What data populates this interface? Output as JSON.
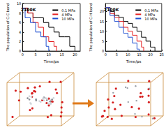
{
  "chart_data": [
    {
      "type": "line",
      "title": "2100K",
      "x_label": "Time/ps",
      "y_label": "The population of C-C bond",
      "xlim": [
        0,
        22
      ],
      "xticks": [
        0,
        5,
        10,
        15,
        20
      ],
      "ylim": [
        0,
        10
      ],
      "yticks": [
        0,
        2,
        4,
        6,
        8,
        10
      ],
      "line_style": "step",
      "legend": "upper right",
      "series": [
        {
          "name": "0.1 MPa",
          "color": "#000000",
          "x": [
            0,
            2,
            4,
            6,
            8,
            10,
            12,
            14,
            16,
            18,
            20
          ],
          "values": [
            9,
            8,
            7,
            7,
            6,
            5,
            4,
            3,
            3,
            1,
            0
          ]
        },
        {
          "name": "4 MPa",
          "color": "#e41a1c",
          "x": [
            0,
            2,
            4,
            6,
            8,
            10,
            12,
            13
          ],
          "values": [
            9,
            8,
            6,
            5,
            3,
            2,
            1,
            0
          ]
        },
        {
          "name": "10 MPa",
          "color": "#1f4fd1",
          "x": [
            0,
            1,
            3,
            5,
            7,
            9,
            10
          ],
          "values": [
            9,
            7,
            6,
            4,
            3,
            1,
            0
          ]
        }
      ]
    },
    {
      "type": "line",
      "title": "2100K",
      "x_label": "Time/ps",
      "y_label": "The population of C-H bond",
      "xlim": [
        0,
        25
      ],
      "xticks": [
        0,
        5,
        10,
        15,
        20,
        25
      ],
      "ylim": [
        0,
        24
      ],
      "yticks": [
        0,
        5,
        10,
        15,
        20
      ],
      "line_style": "step",
      "legend": "upper right",
      "series": [
        {
          "name": "0.1 MPa",
          "color": "#000000",
          "x": [
            0,
            2,
            4,
            6,
            8,
            10,
            12,
            14,
            16,
            18,
            20,
            22
          ],
          "values": [
            22,
            20,
            18,
            17,
            15,
            14,
            12,
            10,
            7,
            5,
            2,
            0
          ]
        },
        {
          "name": "4 MPa",
          "color": "#e41a1c",
          "x": [
            0,
            2,
            4,
            6,
            8,
            10,
            12,
            14,
            16,
            17
          ],
          "values": [
            22,
            19,
            17,
            15,
            12,
            10,
            8,
            5,
            2,
            0
          ]
        },
        {
          "name": "10 MPa",
          "color": "#1f4fd1",
          "x": [
            0,
            2,
            4,
            6,
            8,
            10,
            12,
            14,
            15
          ],
          "values": [
            22,
            18,
            15,
            12,
            9,
            7,
            4,
            1,
            0
          ]
        }
      ]
    }
  ]
}
